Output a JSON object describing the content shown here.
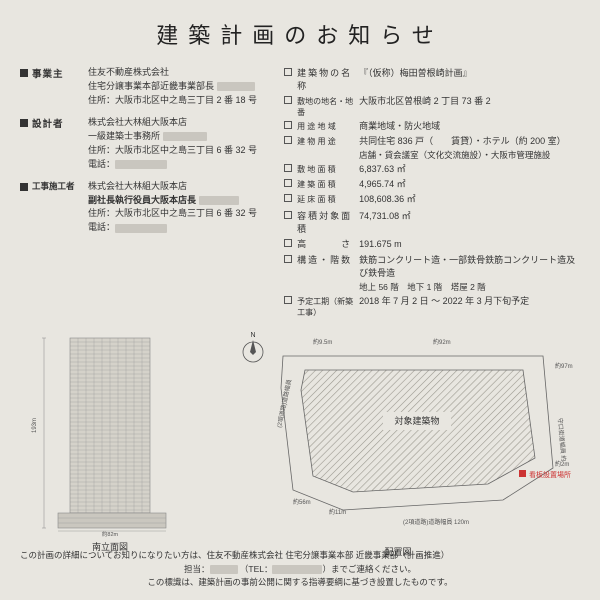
{
  "title": "建築計画のお知らせ",
  "left": {
    "owner": {
      "label": "事業主",
      "l1": "住友不動産株式会社",
      "l2": "住宅分譲事業本部近畿事業部長",
      "l3": "住所：大阪市北区中之島三丁目 2 番 18 号"
    },
    "designer": {
      "label": "設計者",
      "l1": "株式会社大林組大阪本店",
      "l2": "一級建築士事務所",
      "l3": "住所：大阪市北区中之島三丁目 6 番 32 号",
      "l4": "電話："
    },
    "contractor": {
      "label": "工事施工者",
      "l1": "株式会社大林組大阪本店",
      "l2": "副社長執行役員大阪本店長",
      "l3": "住所：大阪市北区中之島三丁目 6 番 32 号",
      "l4": "電話："
    }
  },
  "right": [
    {
      "label": "建築物の名称",
      "value": "『（仮称）梅田曽根崎計画』"
    },
    {
      "label": "敷地の地名・地番",
      "value": "大阪市北区曽根崎 2 丁目 73 番 2"
    },
    {
      "label": "用 途 地 域",
      "value": "商業地域・防火地域"
    },
    {
      "label": "建 物 用 途",
      "value": "共同住宅 836 戸（　　賃貸）・ホテル（約 200 室）",
      "sub": "店舗・貸会議室（文化交流施設）・大阪市管理施設"
    },
    {
      "label": "敷 地 面 積",
      "value": "6,837.63 ㎡"
    },
    {
      "label": "建 築 面 積",
      "value": "4,965.74 ㎡"
    },
    {
      "label": "延 床 面 積",
      "value": "108,608.36 ㎡"
    },
    {
      "label": "容積対象面積",
      "value": "74,731.08 ㎡"
    },
    {
      "label": "高　　　さ",
      "value": "191.675 m"
    },
    {
      "label": "構造・階数",
      "value": "鉄筋コンクリート造・一部鉄骨鉄筋コンクリート造及び鉄骨造",
      "sub": "地上 56 階　地下 1 階　塔屋 2 階"
    },
    {
      "label": "予定工期（新築工事）",
      "value": "2018 年 7 月 2 日 ～ 2022 年 3 月下旬予定"
    }
  ],
  "elevation_caption": "南立面図",
  "siteplan_caption": "配置図",
  "siteplan": {
    "target_label": "対象建築物",
    "sign_label": "看板設置場所",
    "dims": {
      "left": "約9.5m",
      "top_l": "約9.5m",
      "top_r": "約92m",
      "right_t": "約97m",
      "right_b": "約2m",
      "bottom": "120m",
      "bl": "約56m",
      "bl2": "約11m"
    }
  },
  "footer": {
    "l1": "この計画の詳細についてお知りになりたい方は、住友不動産株式会社 住宅分譲事業本部 近畿事業部（計画推進）",
    "l2a": "担当：",
    "l2b": "（TEL：",
    "l2c": "）までご連絡ください。",
    "l3": "この標識は、建築計画の事前公開に関する指導要綱に基づき設置したものです。"
  },
  "colors": {
    "bg": "#e8e6e0",
    "text": "#333",
    "redact": "#c9c6bf",
    "bldg_line": "#888",
    "bldg_fill": "#d5d2ca",
    "site_fill": "#c8c5bd",
    "site_line": "#666",
    "red": "#cc3333"
  }
}
